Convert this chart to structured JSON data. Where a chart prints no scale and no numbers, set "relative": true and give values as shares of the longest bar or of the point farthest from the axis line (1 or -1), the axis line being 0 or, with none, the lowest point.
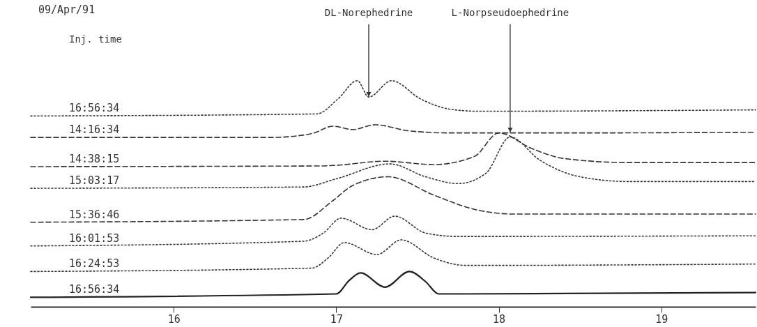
{
  "chart_data": {
    "type": "line",
    "relative": true,
    "title": "09/Apr/91",
    "legend_title": "Inj. time",
    "xlim": [
      15.12,
      19.58
    ],
    "xticks": [
      16,
      17,
      18,
      19
    ],
    "grid": false,
    "annotations": [
      {
        "text": "DL-Norephedrine",
        "x": 17.2,
        "y": 0.928
      },
      {
        "text": "L-Norpseudoephedrine",
        "x": 18.07,
        "y": 0.77
      }
    ],
    "series": [
      {
        "name": "16:56:34",
        "color": "#333333",
        "line_style": "dotted",
        "x": [
          15.12,
          16.88,
          17.01,
          17.13,
          17.2,
          17.34,
          17.52,
          17.7,
          17.87,
          19.58
        ],
        "values": [
          0.844,
          0.853,
          0.919,
          1.0,
          0.928,
          1.0,
          0.919,
          0.874,
          0.865,
          0.871
        ]
      },
      {
        "name": "14:16:34",
        "color": "#333333",
        "line_style": "dashed",
        "x": [
          15.12,
          16.6,
          16.85,
          16.98,
          17.1,
          17.24,
          17.45,
          17.7,
          18.5,
          19.58
        ],
        "values": [
          0.749,
          0.749,
          0.766,
          0.799,
          0.784,
          0.805,
          0.778,
          0.769,
          0.769,
          0.772
        ]
      },
      {
        "name": "14:38:15",
        "color": "#333333",
        "line_style": "dashed",
        "x": [
          15.12,
          16.9,
          17.0,
          17.3,
          17.6,
          17.85,
          18.0,
          18.2,
          18.4,
          18.8,
          19.58
        ],
        "values": [
          0.62,
          0.623,
          0.626,
          0.644,
          0.629,
          0.665,
          0.769,
          0.701,
          0.656,
          0.638,
          0.638
        ]
      },
      {
        "name": "15:03:17",
        "color": "#333333",
        "line_style": "dotted",
        "x": [
          15.12,
          16.8,
          17.0,
          17.33,
          17.55,
          17.75,
          17.92,
          18.07,
          18.25,
          18.5,
          18.8,
          19.58
        ],
        "values": [
          0.524,
          0.53,
          0.566,
          0.632,
          0.575,
          0.545,
          0.59,
          0.751,
          0.65,
          0.575,
          0.554,
          0.554
        ]
      },
      {
        "name": "15:36:46",
        "color": "#333333",
        "line_style": "dashed",
        "x": [
          15.12,
          16.8,
          16.98,
          17.1,
          17.32,
          17.6,
          17.85,
          18.1,
          19.58
        ],
        "values": [
          0.374,
          0.386,
          0.47,
          0.536,
          0.575,
          0.494,
          0.431,
          0.41,
          0.41
        ]
      },
      {
        "name": "16:01:53",
        "color": "#333333",
        "line_style": "dotted",
        "x": [
          15.12,
          16.8,
          16.92,
          17.03,
          17.22,
          17.36,
          17.55,
          17.75,
          19.58
        ],
        "values": [
          0.269,
          0.29,
          0.326,
          0.392,
          0.341,
          0.401,
          0.326,
          0.311,
          0.314
        ]
      },
      {
        "name": "16:24:53",
        "color": "#333333",
        "line_style": "dotted",
        "x": [
          15.12,
          16.85,
          16.95,
          17.05,
          17.25,
          17.4,
          17.6,
          17.8,
          19.58
        ],
        "values": [
          0.156,
          0.171,
          0.216,
          0.284,
          0.231,
          0.296,
          0.216,
          0.183,
          0.189
        ]
      },
      {
        "name": "16:56:34",
        "color": "#222222",
        "line_style": "solid",
        "x": [
          15.12,
          17.0,
          17.08,
          17.15,
          17.3,
          17.45,
          17.55,
          17.63,
          19.58
        ],
        "values": [
          0.042,
          0.057,
          0.117,
          0.15,
          0.087,
          0.156,
          0.111,
          0.057,
          0.063
        ]
      }
    ]
  }
}
